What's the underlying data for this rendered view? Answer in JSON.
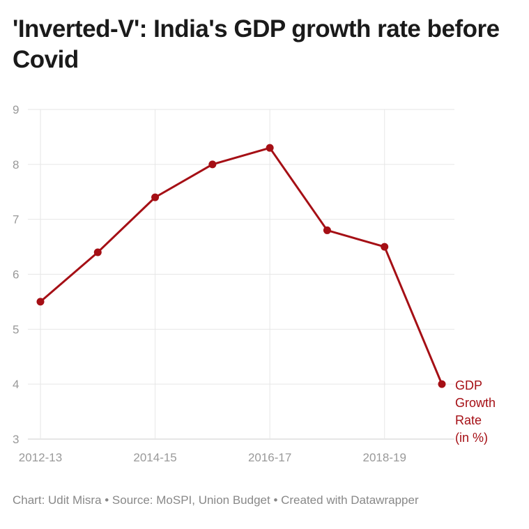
{
  "title": "'Inverted-V': India's GDP growth rate before Covid",
  "footer": "Chart: Udit Misra • Source: MoSPI, Union Budget • Created with Datawrapper",
  "chart_data": {
    "type": "line",
    "x": [
      2012,
      2013,
      2014,
      2015,
      2016,
      2017,
      2018,
      2019
    ],
    "x_tick_labels": [
      {
        "x": 2012,
        "label": "2012-13"
      },
      {
        "x": 2014,
        "label": "2014-15"
      },
      {
        "x": 2016,
        "label": "2016-17"
      },
      {
        "x": 2018,
        "label": "2018-19"
      }
    ],
    "series": [
      {
        "name": "GDP Growth Rate (in %)",
        "label_lines": [
          "GDP",
          "Growth",
          "Rate",
          "(in %)"
        ],
        "values": [
          5.5,
          6.4,
          7.4,
          8.0,
          8.3,
          6.8,
          6.5,
          4.0
        ],
        "color": "#a50f15"
      }
    ],
    "ylim": [
      3,
      9
    ],
    "y_ticks": [
      3,
      4,
      5,
      6,
      7,
      8,
      9
    ],
    "grid": true,
    "legend": "direct label at line end"
  }
}
